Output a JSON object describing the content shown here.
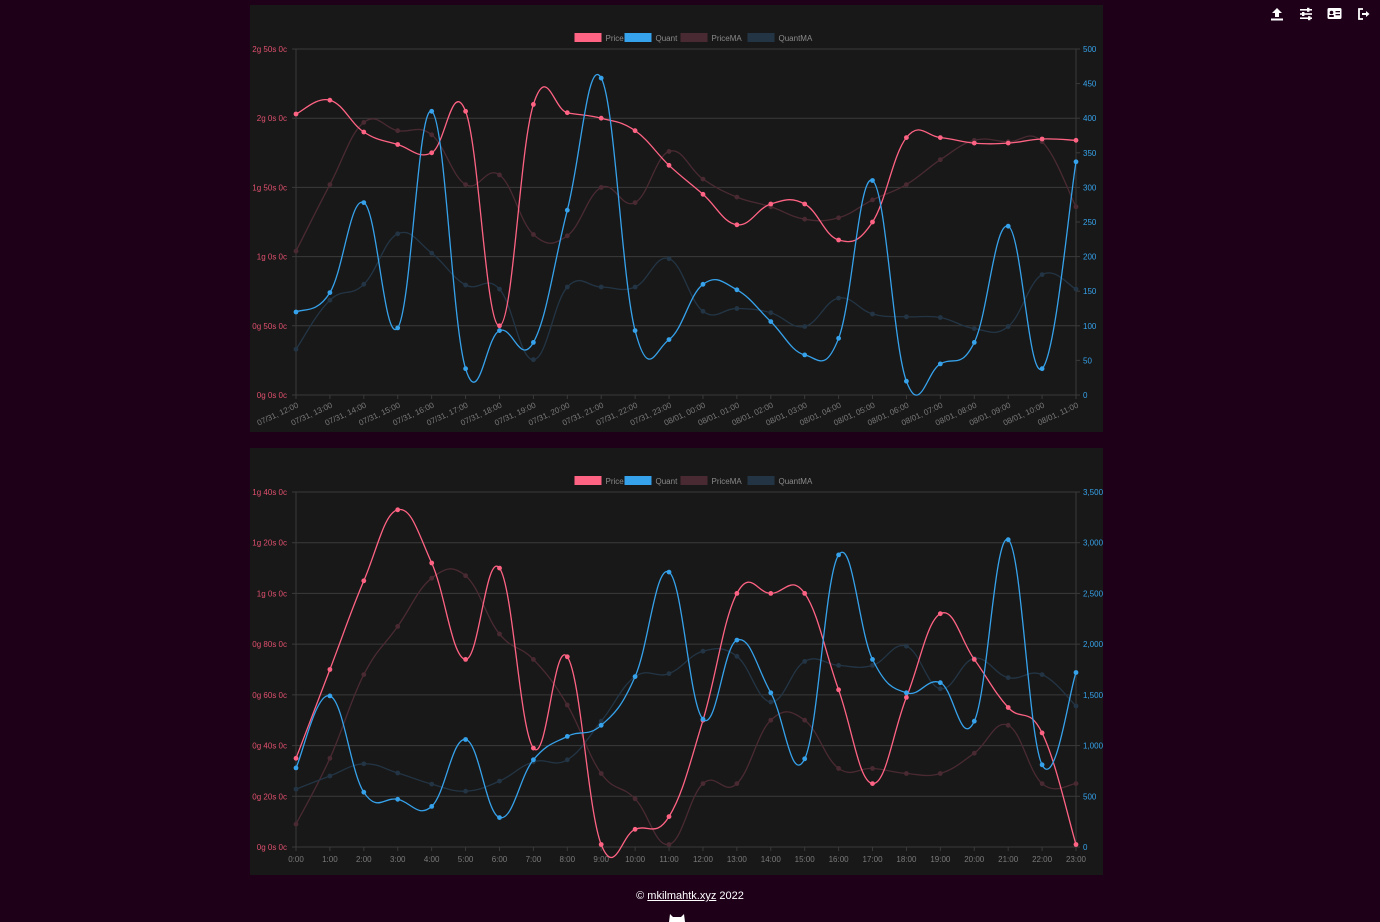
{
  "toolbar": {
    "icons": [
      "upload-icon",
      "sliders-icon",
      "id-card-icon",
      "logout-icon"
    ]
  },
  "footer": {
    "symbol": "©",
    "link_text": "mkilmahtk.xyz",
    "year": "2022"
  },
  "colors": {
    "price": "#ff6384",
    "quant": "#36a2eb",
    "priceMA": "#4a2a32",
    "quantMA": "#233545",
    "left_axis": "#e0506e",
    "right_axis": "#36a2eb",
    "tick_x": "#7a7a7a",
    "legend_text": "#8a8a8a"
  },
  "chart_data": [
    {
      "type": "line",
      "legend": [
        "Price",
        "Quant",
        "PriceMA",
        "QuantMA"
      ],
      "legend_position": "top-center",
      "x": [
        "07/31, 12:00",
        "07/31, 13:00",
        "07/31, 14:00",
        "07/31, 15:00",
        "07/31, 16:00",
        "07/31, 17:00",
        "07/31, 18:00",
        "07/31, 19:00",
        "07/31, 20:00",
        "07/31, 21:00",
        "07/31, 22:00",
        "07/31, 23:00",
        "08/01, 00:00",
        "08/01, 01:00",
        "08/01, 02:00",
        "08/01, 03:00",
        "08/01, 04:00",
        "08/01, 05:00",
        "08/01, 06:00",
        "08/01, 07:00",
        "08/01, 08:00",
        "08/01, 09:00",
        "08/01, 10:00",
        "08/01, 11:00"
      ],
      "left_axis": {
        "min": 0,
        "max": 250,
        "ticks": [
          {
            "v": 0,
            "label": "0g 0s 0c"
          },
          {
            "v": 50,
            "label": "0g 50s 0c"
          },
          {
            "v": 100,
            "label": "1g 0s 0c"
          },
          {
            "v": 150,
            "label": "1g 50s 0c"
          },
          {
            "v": 200,
            "label": "2g 0s 0c"
          },
          {
            "v": 250,
            "label": "2g 50s 0c"
          }
        ]
      },
      "right_axis": {
        "min": 0,
        "max": 500,
        "ticks": [
          {
            "v": 0,
            "label": "0"
          },
          {
            "v": 50,
            "label": "50"
          },
          {
            "v": 100,
            "label": "100"
          },
          {
            "v": 150,
            "label": "150"
          },
          {
            "v": 200,
            "label": "200"
          },
          {
            "v": 250,
            "label": "250"
          },
          {
            "v": 300,
            "label": "300"
          },
          {
            "v": 350,
            "label": "350"
          },
          {
            "v": 400,
            "label": "400"
          },
          {
            "v": 450,
            "label": "450"
          },
          {
            "v": 500,
            "label": "500"
          }
        ]
      },
      "series": [
        {
          "name": "Price",
          "axis": "left",
          "values": [
            203,
            213,
            190,
            181,
            175,
            205,
            50,
            210,
            204,
            200,
            191,
            166,
            145,
            123,
            138,
            138,
            112,
            125,
            186,
            186,
            182,
            182,
            185,
            184
          ]
        },
        {
          "name": "Quant",
          "axis": "right",
          "values": [
            120,
            148,
            278,
            97,
            410,
            38,
            93,
            76,
            267,
            458,
            93,
            80,
            160,
            152,
            106,
            58,
            82,
            310,
            20,
            45,
            76,
            244,
            38,
            337
          ]
        },
        {
          "name": "PriceMA",
          "axis": "left",
          "values": [
            104,
            152,
            197,
            191,
            188,
            152,
            159,
            116,
            115,
            150,
            139,
            176,
            156,
            143,
            136,
            127,
            128,
            141,
            152,
            170,
            184,
            183,
            183,
            136
          ]
        },
        {
          "name": "QuantMA",
          "axis": "right",
          "values": [
            66,
            137,
            160,
            233,
            205,
            159,
            153,
            51,
            156,
            156,
            156,
            197,
            121,
            125,
            119,
            99,
            140,
            117,
            113,
            112,
            96,
            99,
            174,
            153
          ]
        }
      ]
    },
    {
      "type": "line",
      "legend": [
        "Price",
        "Quant",
        "PriceMA",
        "QuantMA"
      ],
      "legend_position": "top-center",
      "x": [
        "0:00",
        "1:00",
        "2:00",
        "3:00",
        "4:00",
        "5:00",
        "6:00",
        "7:00",
        "8:00",
        "9:00",
        "10:00",
        "11:00",
        "12:00",
        "13:00",
        "14:00",
        "15:00",
        "16:00",
        "17:00",
        "18:00",
        "19:00",
        "20:00",
        "21:00",
        "22:00",
        "23:00"
      ],
      "left_axis": {
        "min": 0,
        "max": 140,
        "ticks": [
          {
            "v": 0,
            "label": "0g 0s 0c"
          },
          {
            "v": 20,
            "label": "0g 20s 0c"
          },
          {
            "v": 40,
            "label": "0g 40s 0c"
          },
          {
            "v": 60,
            "label": "0g 60s 0c"
          },
          {
            "v": 80,
            "label": "0g 80s 0c"
          },
          {
            "v": 100,
            "label": "1g 0s 0c"
          },
          {
            "v": 120,
            "label": "1g 20s 0c"
          },
          {
            "v": 140,
            "label": "1g 40s 0c"
          }
        ]
      },
      "right_axis": {
        "min": 0,
        "max": 3500,
        "ticks": [
          {
            "v": 0,
            "label": "0"
          },
          {
            "v": 500,
            "label": "500"
          },
          {
            "v": 1000,
            "label": "1,000"
          },
          {
            "v": 1500,
            "label": "1,500"
          },
          {
            "v": 2000,
            "label": "2,000"
          },
          {
            "v": 2500,
            "label": "2,500"
          },
          {
            "v": 3000,
            "label": "3,000"
          },
          {
            "v": 3500,
            "label": "3,500"
          }
        ]
      },
      "series": [
        {
          "name": "Price",
          "axis": "left",
          "values": [
            35,
            70,
            105,
            133,
            112,
            74,
            110,
            39,
            75,
            1,
            7,
            12,
            50,
            100,
            100,
            100,
            62,
            25,
            59,
            92,
            74,
            55,
            45,
            1
          ]
        },
        {
          "name": "Quant",
          "axis": "right",
          "values": [
            780,
            1490,
            540,
            470,
            400,
            1060,
            290,
            860,
            1090,
            1200,
            1680,
            2710,
            1260,
            2040,
            1520,
            870,
            2880,
            1850,
            1520,
            1620,
            1240,
            3030,
            810,
            1720
          ]
        },
        {
          "name": "PriceMA",
          "axis": "left",
          "values": [
            9,
            35,
            68,
            87,
            106,
            107,
            84,
            74,
            56,
            29,
            19,
            1,
            25,
            25,
            50,
            50,
            31,
            31,
            29,
            29,
            37,
            48,
            25,
            25
          ]
        },
        {
          "name": "QuantMA",
          "axis": "right",
          "values": [
            570,
            700,
            820,
            730,
            620,
            550,
            650,
            840,
            860,
            1240,
            1680,
            1710,
            1930,
            1880,
            1430,
            1830,
            1790,
            1790,
            1980,
            1560,
            1860,
            1670,
            1700,
            1390
          ]
        }
      ]
    }
  ]
}
